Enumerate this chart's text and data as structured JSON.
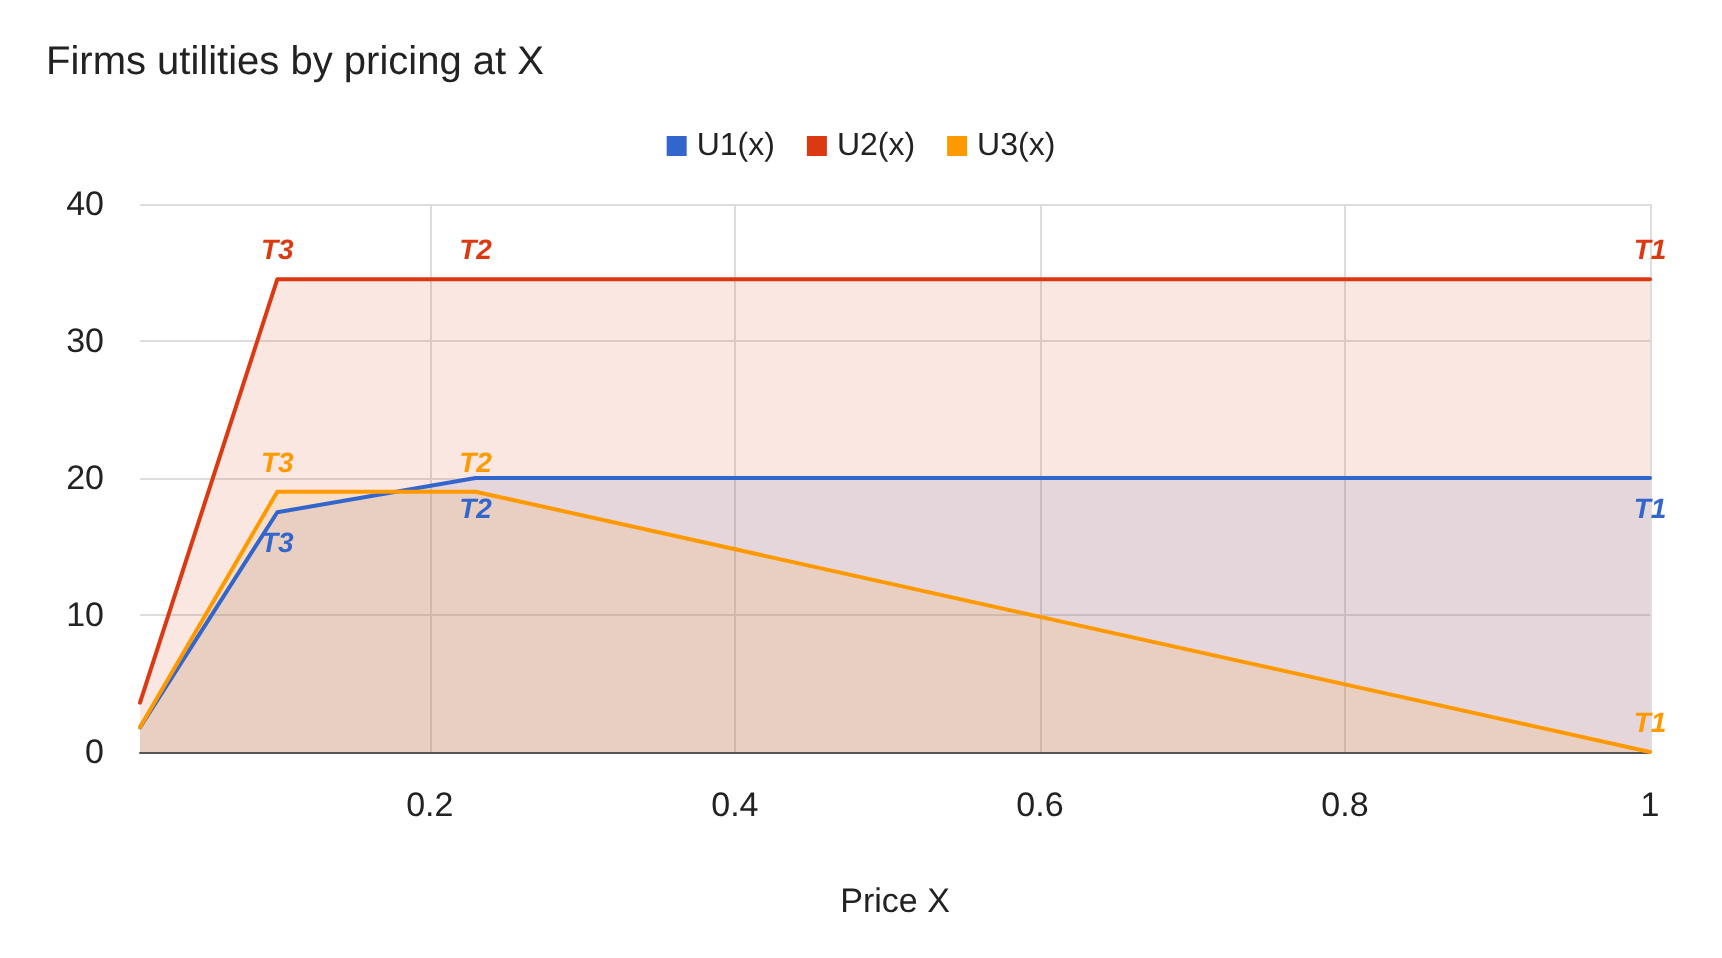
{
  "chart_data": {
    "type": "area",
    "title": "Firms utilities by pricing at X",
    "xlabel": "Price X",
    "x": [
      0.01,
      0.1,
      0.23,
      1
    ],
    "series": [
      {
        "name": "U1(x)",
        "color": "#3366cc",
        "values": [
          1.8,
          17.5,
          20,
          20
        ],
        "value_labels": [
          null,
          "T3",
          "T2",
          "T1"
        ]
      },
      {
        "name": "U2(x)",
        "color": "#dc3912",
        "values": [
          3.6,
          34.5,
          34.5,
          34.5
        ],
        "value_labels": [
          null,
          "T3",
          "T2",
          "T1"
        ]
      },
      {
        "name": "U3(x)",
        "color": "#ff9900",
        "values": [
          1.8,
          19,
          19,
          0
        ],
        "value_labels": [
          null,
          "T3",
          "T2",
          "T1"
        ]
      }
    ],
    "xlim": [
      0.01,
      1
    ],
    "xticks": [
      0.2,
      0.4,
      0.6,
      0.8,
      1
    ],
    "ylim": [
      0,
      40
    ],
    "yticks": [
      0,
      10,
      20,
      30,
      40
    ],
    "grid": true,
    "legend": "top",
    "marker": "none",
    "line_style": "solid"
  }
}
